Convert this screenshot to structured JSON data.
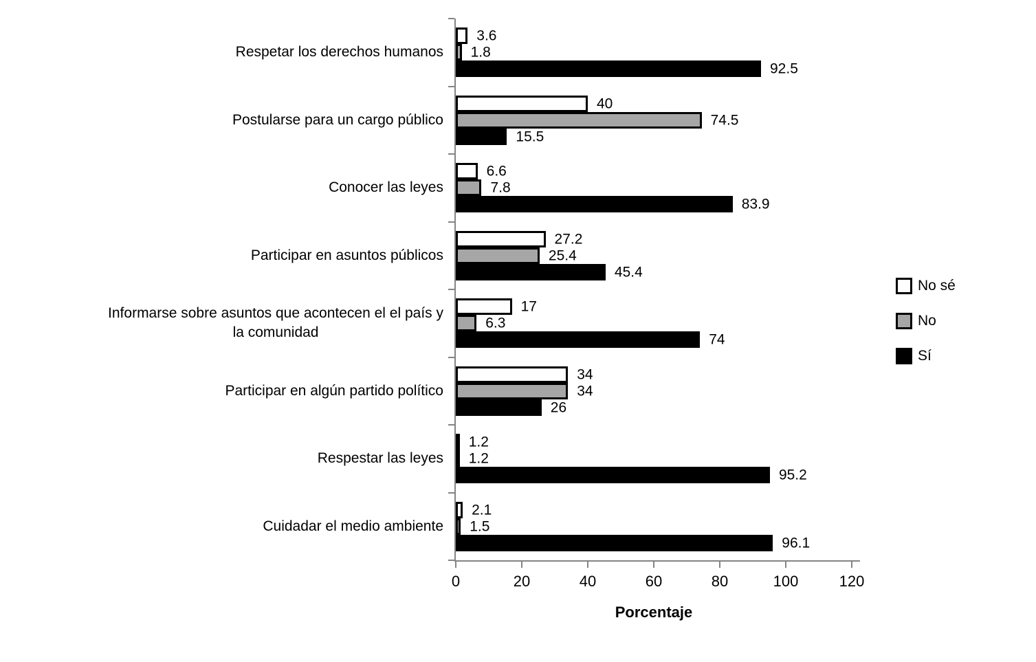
{
  "chart_data": {
    "type": "bar",
    "orientation": "horizontal",
    "title": "",
    "xlabel": "Porcentaje",
    "xlim": [
      0,
      120
    ],
    "xticks": [
      0,
      20,
      40,
      60,
      80,
      100,
      120
    ],
    "grid": false,
    "legend_position": "right",
    "value_labels": true,
    "axis_color": "#848484",
    "text_color": "#000000",
    "categories": [
      "Respetar los derechos humanos",
      "Postularse para un cargo público",
      "Conocer las leyes",
      "Participar en asuntos públicos",
      "Informarse sobre asuntos que acontecen el el país y\nla comunidad",
      "Participar en algún partido político",
      "Respestar las leyes",
      "Cuidadar el medio ambiente"
    ],
    "series": [
      {
        "name": "No sé",
        "color": "#ffffff",
        "border": "#000000",
        "values": [
          3.6,
          40,
          6.6,
          27.2,
          17,
          34,
          1.2,
          2.1
        ]
      },
      {
        "name": "No",
        "color": "#a6a6a6",
        "border": "#000000",
        "values": [
          1.8,
          74.5,
          7.8,
          25.4,
          6.3,
          34,
          1.2,
          1.5
        ]
      },
      {
        "name": "Sí",
        "color": "#000000",
        "border": "#000000",
        "values": [
          92.5,
          15.5,
          83.9,
          45.4,
          74,
          26,
          95.2,
          96.1
        ]
      }
    ]
  }
}
